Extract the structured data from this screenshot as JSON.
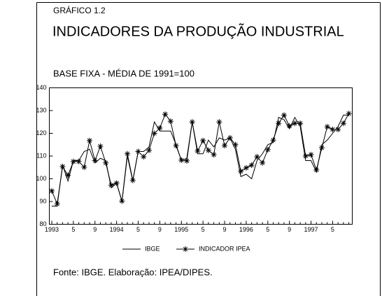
{
  "chart_data": {
    "type": "line",
    "label": "GRÁFICO 1.2",
    "title": "INDICADORES DA PRODUÇÃO INDUSTRIAL",
    "subtitle": "BASE FIXA - MÉDIA DE 1991=100",
    "source": "Fonte: IBGE. Elaboração: IPEA/DIPES.",
    "categories": [
      "1993",
      null,
      null,
      null,
      "5",
      null,
      null,
      null,
      "9",
      null,
      null,
      null,
      "1994",
      null,
      null,
      null,
      "5",
      null,
      null,
      null,
      "9",
      null,
      null,
      null,
      "1995",
      null,
      null,
      null,
      "5",
      null,
      null,
      null,
      "9",
      null,
      null,
      null,
      "1996",
      null,
      null,
      null,
      "5",
      null,
      null,
      null,
      "9",
      null,
      null,
      null,
      "1997",
      null,
      null,
      null,
      "5",
      null,
      null,
      null
    ],
    "series": [
      {
        "name": "IBGE",
        "color": "#000000",
        "marker": "none",
        "values": [
          88,
          88,
          106,
          99,
          108,
          108,
          112,
          113,
          107,
          109,
          108,
          96,
          98,
          90,
          110,
          99,
          112,
          112,
          114,
          125,
          121,
          121,
          121,
          115,
          108,
          109,
          125,
          111,
          111,
          117,
          114,
          118,
          117,
          118,
          113,
          101,
          102,
          100,
          108,
          111,
          115,
          116,
          127,
          126,
          122,
          127,
          123,
          108,
          108,
          103,
          115,
          117,
          120,
          123,
          128,
          128
        ]
      },
      {
        "name": "INDICADOR IPEA",
        "color": "#000000",
        "marker": "asterisk",
        "values": [
          94.7,
          89,
          105.4,
          101.5,
          107.6,
          107.6,
          105.1,
          116.8,
          108,
          114.3,
          107,
          97.2,
          98.1,
          90.2,
          111,
          99.3,
          112,
          109.7,
          112.5,
          120,
          122.3,
          128.4,
          125.3,
          114.6,
          108.2,
          107.9,
          125,
          112.2,
          116.8,
          112.5,
          110.6,
          125,
          114.6,
          118,
          115,
          103.3,
          104.8,
          106,
          109.7,
          107,
          112.8,
          117,
          124.4,
          128,
          123.2,
          124.4,
          124.4,
          110,
          110.6,
          103.9,
          113.7,
          122.9,
          121.7,
          121.7,
          124.4,
          128.7
        ]
      }
    ],
    "ylim": [
      80,
      140
    ],
    "yticks": [
      80,
      90,
      100,
      110,
      120,
      130,
      140
    ]
  }
}
